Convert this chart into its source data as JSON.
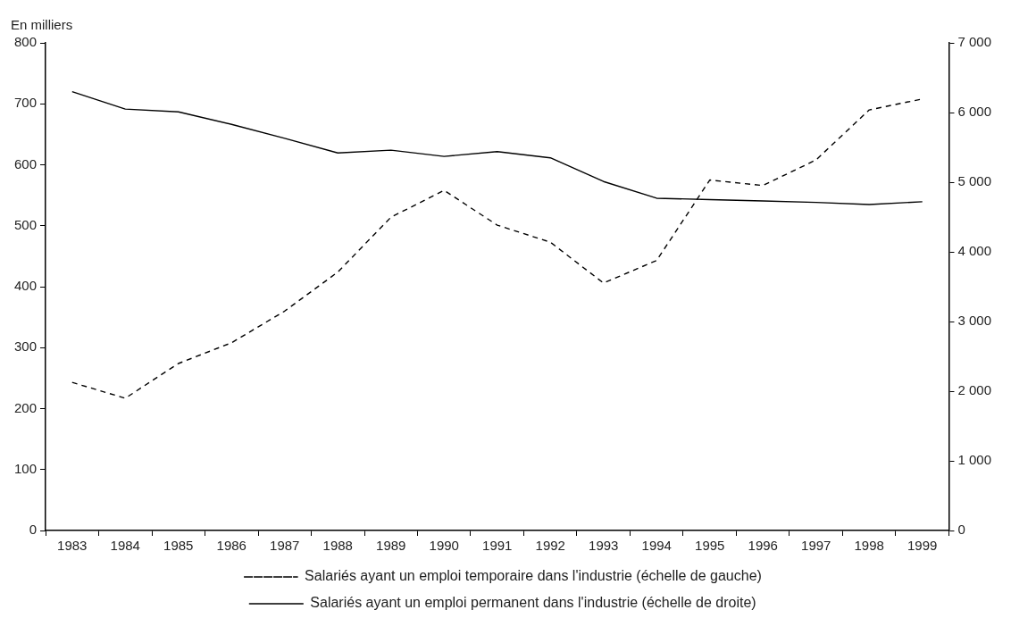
{
  "chart_data": {
    "type": "line",
    "ylabel": "En milliers",
    "categories": [
      "1983",
      "1984",
      "1985",
      "1986",
      "1987",
      "1988",
      "1989",
      "1990",
      "1991",
      "1992",
      "1993",
      "1994",
      "1995",
      "1996",
      "1997",
      "1998",
      "1999"
    ],
    "series": [
      {
        "name": "Salariés ayant un emploi temporaire dans l'industrie (échelle de gauche)",
        "color": "#000000",
        "line_style": "dashed",
        "values": [
          243,
          217,
          274,
          308,
          360,
          424,
          514,
          558,
          501,
          473,
          406,
          443,
          575,
          566,
          608,
          690,
          708
        ]
      },
      {
        "name": "Salariés ayant un emploi permanent dans l'industrie (échelle de droite)",
        "color": "#000000",
        "line_style": "solid",
        "axis": "y2",
        "values": [
          6300,
          6050,
          6010,
          5830,
          5630,
          5420,
          5460,
          5370,
          5440,
          5350,
          5010,
          4770,
          4750,
          4730,
          4710,
          4680,
          4720
        ]
      }
    ],
    "ylim": [
      0,
      800
    ],
    "yticks": [
      0,
      100,
      200,
      300,
      400,
      500,
      600,
      700,
      800
    ],
    "y2lim": [
      0,
      7000
    ],
    "y2ticks": [
      0,
      {
        "value": 1000,
        "label": "1 000"
      },
      {
        "value": 2000,
        "label": "2 000"
      },
      {
        "value": 3000,
        "label": "3 000"
      },
      {
        "value": 4000,
        "label": "4 000"
      },
      {
        "value": 5000,
        "label": "5 000"
      },
      {
        "value": 6000,
        "label": "6 000"
      },
      {
        "value": 7000,
        "label": "7 000"
      }
    ],
    "grid": false,
    "legend": "bottom",
    "marker": "none"
  }
}
